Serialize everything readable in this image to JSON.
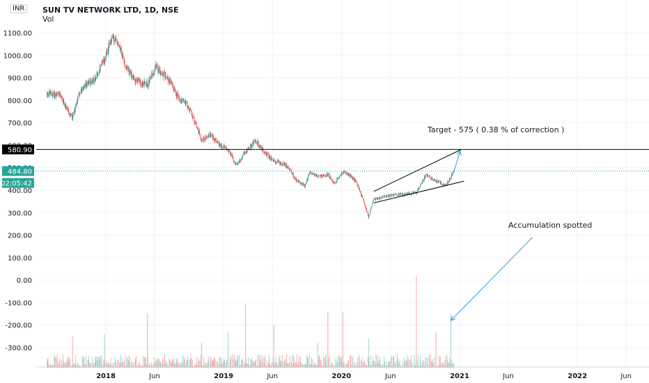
{
  "header": {
    "currency": "INR",
    "symbol_title": "SUN TV NETWORK LTD, 1D, NSE",
    "volume_label": "Vol"
  },
  "price_labels": {
    "horizontal_level": "580.90",
    "last_price": "484.80",
    "countdown": "02:05:42"
  },
  "annotations": {
    "target": "Target - 575 ( 0.38 % of correction )",
    "accumulation": "Accumulation spotted"
  },
  "colors": {
    "up": "#26a69a",
    "down": "#ef5350",
    "vol_up": "#9ad5cf",
    "vol_down": "#f4a7a5",
    "drawing": "#000000",
    "arrow": "#2e9fe0",
    "grid": "#f0f3fa",
    "last_price_bg": "#26a69a",
    "level_bg": "#000000"
  },
  "chart_data": {
    "type": "candlestick",
    "title": "SUN TV NETWORK LTD, 1D, NSE",
    "y_axis": {
      "range": [
        -390,
        1170
      ],
      "ticks": [
        "1100.00",
        "1000.00",
        "900.00",
        "800.00",
        "700.00",
        "600.00",
        "500.00",
        "400.00",
        "300.00",
        "200.00",
        "100.00",
        "0.00",
        "-100.00",
        "-200.00",
        "-300.00"
      ],
      "tick_values": [
        1100,
        1000,
        900,
        800,
        700,
        600,
        500,
        400,
        300,
        200,
        100,
        0,
        -100,
        -200,
        -300
      ]
    },
    "x_axis": {
      "range": [
        "2017-07-01",
        "2022-07-15"
      ],
      "tick_labels": [
        "2018",
        "Jun",
        "2019",
        "Jun",
        "2020",
        "Jun",
        "2021",
        "Jun",
        "2022",
        "Jun"
      ],
      "tick_dates": [
        "2018-01-01",
        "2018-06-01",
        "2019-01-01",
        "2019-06-01",
        "2020-01-01",
        "2020-06-01",
        "2021-01-01",
        "2021-06-01",
        "2022-01-01",
        "2022-06-01"
      ]
    },
    "grid": true,
    "price_path": [
      {
        "date": "2017-07-01",
        "close": 830
      },
      {
        "date": "2017-08-15",
        "close": 820
      },
      {
        "date": "2017-09-01",
        "close": 760
      },
      {
        "date": "2017-09-20",
        "close": 720
      },
      {
        "date": "2017-10-10",
        "close": 830
      },
      {
        "date": "2017-11-01",
        "close": 870
      },
      {
        "date": "2017-12-01",
        "close": 900
      },
      {
        "date": "2017-12-28",
        "close": 980
      },
      {
        "date": "2018-01-20",
        "close": 1080
      },
      {
        "date": "2018-02-10",
        "close": 1050
      },
      {
        "date": "2018-03-01",
        "close": 960
      },
      {
        "date": "2018-03-25",
        "close": 900
      },
      {
        "date": "2018-04-15",
        "close": 880
      },
      {
        "date": "2018-05-10",
        "close": 870
      },
      {
        "date": "2018-06-05",
        "close": 950
      },
      {
        "date": "2018-06-25",
        "close": 920
      },
      {
        "date": "2018-07-20",
        "close": 880
      },
      {
        "date": "2018-08-15",
        "close": 810
      },
      {
        "date": "2018-09-10",
        "close": 780
      },
      {
        "date": "2018-10-05",
        "close": 700
      },
      {
        "date": "2018-10-25",
        "close": 620
      },
      {
        "date": "2018-11-20",
        "close": 650
      },
      {
        "date": "2018-12-20",
        "close": 600
      },
      {
        "date": "2019-01-15",
        "close": 580
      },
      {
        "date": "2019-02-10",
        "close": 510
      },
      {
        "date": "2019-03-10",
        "close": 570
      },
      {
        "date": "2019-04-10",
        "close": 620
      },
      {
        "date": "2019-05-05",
        "close": 570
      },
      {
        "date": "2019-06-05",
        "close": 530
      },
      {
        "date": "2019-07-15",
        "close": 510
      },
      {
        "date": "2019-08-15",
        "close": 440
      },
      {
        "date": "2019-09-10",
        "close": 420
      },
      {
        "date": "2019-09-25",
        "close": 480
      },
      {
        "date": "2019-10-20",
        "close": 460
      },
      {
        "date": "2019-11-20",
        "close": 470
      },
      {
        "date": "2019-12-10",
        "close": 430
      },
      {
        "date": "2020-01-05",
        "close": 480
      },
      {
        "date": "2020-01-25",
        "close": 470
      },
      {
        "date": "2020-02-15",
        "close": 440
      },
      {
        "date": "2020-03-10",
        "close": 350
      },
      {
        "date": "2020-03-25",
        "close": 280
      },
      {
        "date": "2020-04-10",
        "close": 360
      },
      {
        "date": "2020-05-10",
        "close": 370
      },
      {
        "date": "2020-06-10",
        "close": 380
      },
      {
        "date": "2020-07-10",
        "close": 380
      },
      {
        "date": "2020-08-20",
        "close": 390
      },
      {
        "date": "2020-09-20",
        "close": 470
      },
      {
        "date": "2020-10-20",
        "close": 440
      },
      {
        "date": "2020-11-20",
        "close": 420
      },
      {
        "date": "2020-12-15",
        "close": 484.8
      }
    ],
    "volume_spikes": [
      {
        "date": "2017-09-20",
        "value": -250
      },
      {
        "date": "2017-12-28",
        "value": -240
      },
      {
        "date": "2018-05-10",
        "value": -150
      },
      {
        "date": "2018-10-25",
        "value": -280
      },
      {
        "date": "2019-01-15",
        "value": -230
      },
      {
        "date": "2019-03-10",
        "value": -110
      },
      {
        "date": "2019-06-05",
        "value": -200
      },
      {
        "date": "2019-10-20",
        "value": -280
      },
      {
        "date": "2019-11-20",
        "value": -140
      },
      {
        "date": "2020-01-05",
        "value": -140
      },
      {
        "date": "2020-03-25",
        "value": -260
      },
      {
        "date": "2020-08-20",
        "value": 20
      },
      {
        "date": "2020-10-20",
        "value": -230
      },
      {
        "date": "2020-12-05",
        "value": -150
      }
    ],
    "horizontal_line": {
      "value": 580.9
    },
    "channel_lines": [
      {
        "from": {
          "date": "2020-04-10",
          "value": 394
        },
        "to": {
          "date": "2021-01-05",
          "value": 580
        }
      },
      {
        "from": {
          "date": "2020-04-10",
          "value": 343
        },
        "to": {
          "date": "2021-01-15",
          "value": 440
        }
      }
    ],
    "target_arrow": {
      "from": {
        "date": "2020-12-15",
        "value": 484.8
      },
      "to": {
        "date": "2021-01-03",
        "value": 575
      }
    },
    "volume_arrow": {
      "from": {
        "date": "2021-08-15",
        "value": 190
      },
      "to": {
        "date": "2020-12-05",
        "value": -180
      }
    }
  }
}
